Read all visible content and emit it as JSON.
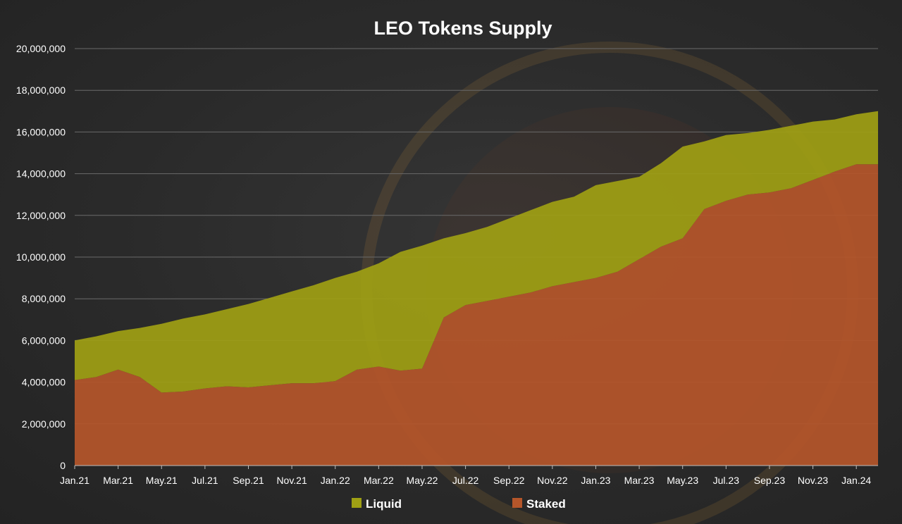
{
  "chart_data": {
    "type": "area",
    "title": "LEO Tokens Supply",
    "xlabel": "",
    "ylabel": "",
    "x": [
      "Jan.21",
      "Feb.21",
      "Mar.21",
      "Apr.21",
      "May.21",
      "Jun.21",
      "Jul.21",
      "Aug.21",
      "Sep.21",
      "Oct.21",
      "Nov.21",
      "Dec.21",
      "Jan.22",
      "Feb.22",
      "Mar.22",
      "Apr.22",
      "May.22",
      "Jun.22",
      "Jul.22",
      "Aug.22",
      "Sep.22",
      "Oct.22",
      "Nov.22",
      "Dec.22",
      "Jan.23",
      "Feb.23",
      "Mar.23",
      "Apr.23",
      "May.23",
      "Jun.23",
      "Jul.23",
      "Aug.23",
      "Sep.23",
      "Oct.23",
      "Nov.23",
      "Dec.23",
      "Jan.24",
      "Feb.24"
    ],
    "x_tick_labels": [
      "Jan.21",
      "Mar.21",
      "May.21",
      "Jul.21",
      "Sep.21",
      "Nov.21",
      "Jan.22",
      "Mar.22",
      "May.22",
      "Jul.22",
      "Sep.22",
      "Nov.22",
      "Jan.23",
      "Mar.23",
      "May.23",
      "Jul.23",
      "Sep.23",
      "Nov.23",
      "Jan.24"
    ],
    "y_tick_labels": [
      "0",
      "2,000,000",
      "4,000,000",
      "6,000,000",
      "8,000,000",
      "10,000,000",
      "12,000,000",
      "14,000,000",
      "16,000,000",
      "18,000,000",
      "20,000,000"
    ],
    "ylim": [
      0,
      20000000
    ],
    "grid": true,
    "legend_position": "bottom",
    "stacked": true,
    "series": [
      {
        "name": "Staked",
        "color": "#b5562a",
        "values": [
          4100000,
          4250000,
          4600000,
          4250000,
          3500000,
          3550000,
          3700000,
          3800000,
          3750000,
          3850000,
          3950000,
          3950000,
          4050000,
          4600000,
          4750000,
          4550000,
          4650000,
          7100000,
          7700000,
          7900000,
          8100000,
          8300000,
          8600000,
          8800000,
          9000000,
          9300000,
          9900000,
          10500000,
          10900000,
          12300000,
          12700000,
          13000000,
          13100000,
          13300000,
          13700000,
          14100000,
          14450000,
          14450000
        ]
      },
      {
        "name": "Liquid",
        "color": "#9fa014",
        "values": [
          1900000,
          1950000,
          1850000,
          2350000,
          3300000,
          3500000,
          3550000,
          3700000,
          4000000,
          4200000,
          4400000,
          4700000,
          4950000,
          4700000,
          4950000,
          5700000,
          5900000,
          3800000,
          3450000,
          3550000,
          3750000,
          3950000,
          4050000,
          4100000,
          4450000,
          4350000,
          3950000,
          4000000,
          4400000,
          3250000,
          3150000,
          2950000,
          3000000,
          3000000,
          2800000,
          2500000,
          2400000,
          2550000
        ]
      }
    ],
    "legend_order": [
      "Liquid",
      "Staked"
    ]
  }
}
